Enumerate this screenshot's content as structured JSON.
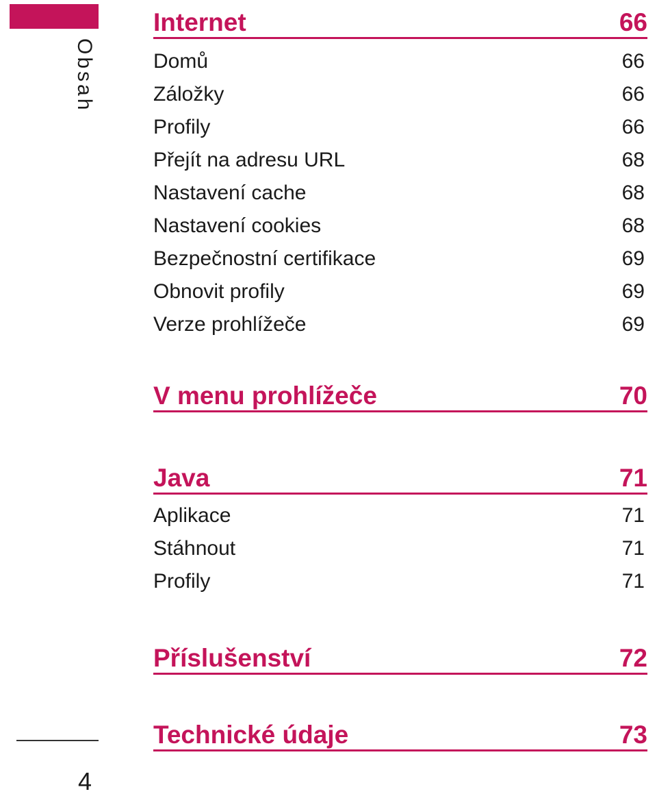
{
  "sidebar": {
    "label": "Obsah",
    "page_number": "4",
    "accent": "#c4145a"
  },
  "sections": [
    {
      "title": "Internet",
      "page": "66",
      "entries": [
        {
          "label": "Domů",
          "page": "66"
        },
        {
          "label": "Záložky",
          "page": "66"
        },
        {
          "label": "Profily",
          "page": "66"
        },
        {
          "label": "Přejít na adresu URL",
          "page": "68"
        },
        {
          "label": "Nastavení cache",
          "page": "68"
        },
        {
          "label": "Nastavení cookies",
          "page": "68"
        },
        {
          "label": "Bezpečnostní certifikace",
          "page": "69"
        },
        {
          "label": "Obnovit profily",
          "page": "69"
        },
        {
          "label": "Verze prohlížeče",
          "page": "69"
        }
      ]
    },
    {
      "title": "V menu prohlížeče",
      "page": "70",
      "entries": []
    },
    {
      "title": "Java",
      "page": "71",
      "entries": [
        {
          "label": "Aplikace",
          "page": "71"
        },
        {
          "label": "Stáhnout",
          "page": "71"
        },
        {
          "label": "Profily",
          "page": "71"
        }
      ]
    },
    {
      "title": "Příslušenství",
      "page": "72",
      "entries": []
    },
    {
      "title": "Technické údaje",
      "page": "73",
      "entries": []
    }
  ]
}
